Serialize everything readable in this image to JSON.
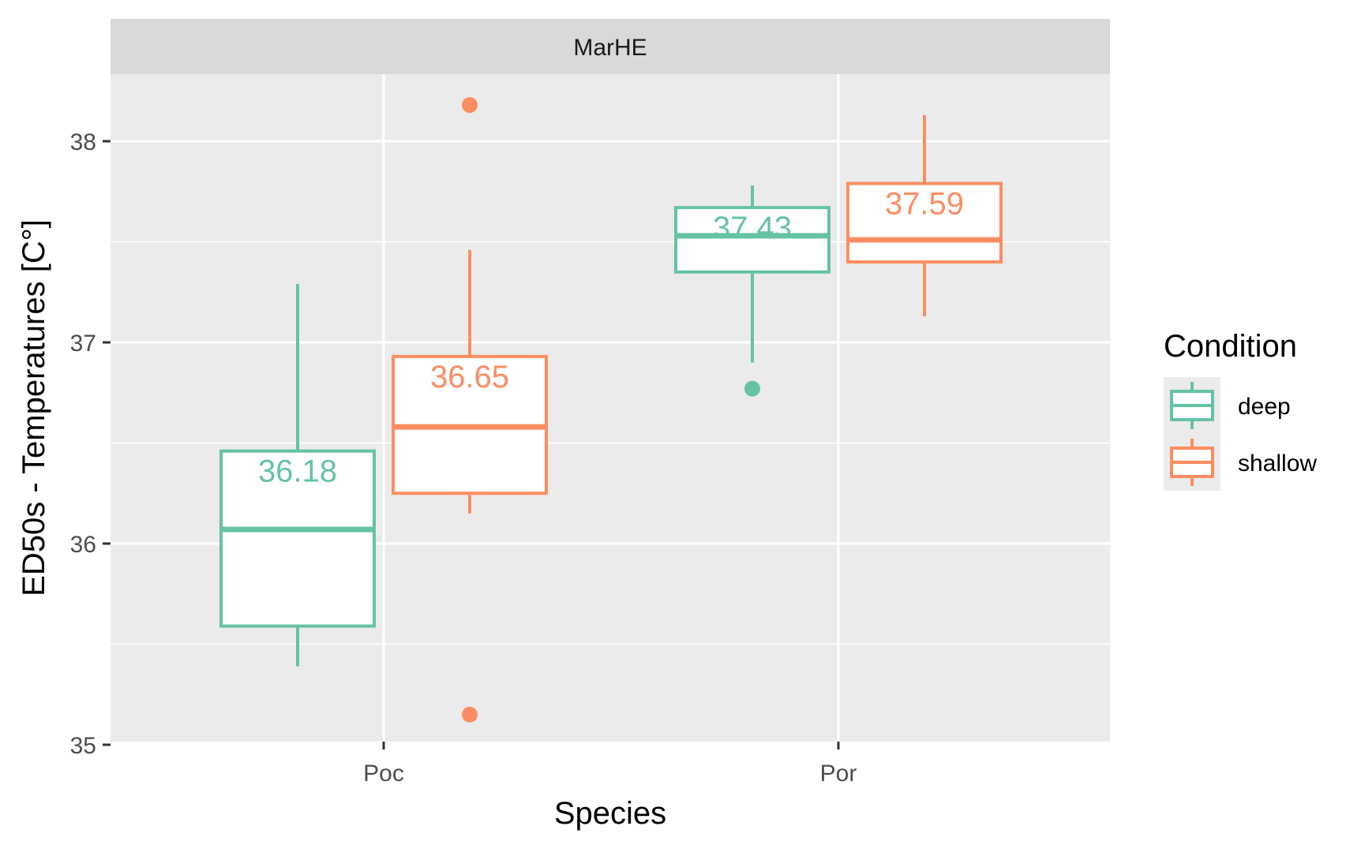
{
  "chart_data": {
    "type": "boxplot",
    "facet_label": "MarHE",
    "xlabel": "Species",
    "ylabel": "ED50s - Temperatures [C°]",
    "ylim": [
      35,
      38.3
    ],
    "yticks": [
      35,
      36,
      37,
      38
    ],
    "ytick_labels": [
      "35",
      "36",
      "37",
      "38"
    ],
    "categories": [
      "Poc",
      "Por"
    ],
    "legend": {
      "title": "Condition",
      "position": "right",
      "entries": [
        {
          "name": "deep",
          "color": "#66c2a5"
        },
        {
          "name": "shallow",
          "color": "#fc8d62"
        }
      ]
    },
    "series": [
      {
        "name": "deep",
        "color": "#66c2a5",
        "boxes": [
          {
            "category": "Poc",
            "whisker_low": 35.39,
            "q1": 35.59,
            "median": 36.07,
            "q3": 36.46,
            "whisker_high": 37.29,
            "outliers": [],
            "label": "36.18"
          },
          {
            "category": "Por",
            "whisker_low": 36.9,
            "q1": 37.35,
            "median": 37.53,
            "q3": 37.67,
            "whisker_high": 37.78,
            "outliers": [
              36.77
            ],
            "label": "37.43"
          }
        ]
      },
      {
        "name": "shallow",
        "color": "#fc8d62",
        "boxes": [
          {
            "category": "Poc",
            "whisker_low": 36.15,
            "q1": 36.25,
            "median": 36.58,
            "q3": 36.93,
            "whisker_high": 37.46,
            "outliers": [
              38.18,
              35.15
            ],
            "label": "36.65"
          },
          {
            "category": "Por",
            "whisker_low": 37.13,
            "q1": 37.4,
            "median": 37.51,
            "q3": 37.79,
            "whisker_high": 38.13,
            "outliers": [],
            "label": "37.59"
          }
        ]
      }
    ],
    "grid": true,
    "colors": {
      "panel_bg": "#ebebeb",
      "strip_bg": "#d9d9d9",
      "grid": "#ffffff"
    }
  }
}
